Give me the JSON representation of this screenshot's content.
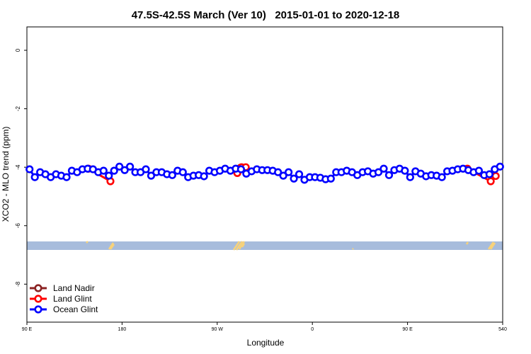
{
  "chart_data": {
    "type": "line",
    "title": "47.5S-42.5S March (Ver 10)   2015-01-01 to 2020-12-18",
    "x_label": "Longitude",
    "y_label": "XCO2 - MLO trend (ppm)",
    "xlim": [
      90,
      540
    ],
    "ylim": [
      -9.3,
      0.8
    ],
    "xticks": [
      {
        "value": 90,
        "label": "90 E"
      },
      180,
      {
        "value": 270,
        "label": "90 W"
      },
      {
        "value": 360,
        "label": "0"
      },
      {
        "value": 450,
        "label": "90 E"
      },
      540
    ],
    "yticks": [
      0,
      -2,
      -4,
      -6,
      -8
    ],
    "legend": "bottom-left",
    "series": [
      {
        "name": "Land Nadir",
        "color": "#8b2323",
        "x": [
          292
        ],
        "values": [
          -4.02
        ]
      },
      {
        "name": "Land Glint",
        "color": "#ff0000",
        "x": [
          148.3,
          169,
          null,
          289,
          293,
          297,
          null,
          506.6,
          528.7,
          533.4
        ],
        "values": [
          -4.05,
          -4.48,
          null,
          -4.2,
          -4.0,
          -4.0,
          null,
          -4.05,
          -4.48,
          -4.3
        ]
      },
      {
        "name": "Ocean Glint",
        "color": "#0000ff",
        "x": [
          92.5,
          97.5,
          102.5,
          107.5,
          112.5,
          117.5,
          122.5,
          127.5,
          132.5,
          137.5,
          142.5,
          147.5,
          152.5,
          157.5,
          162.5,
          167.5,
          172.5,
          177.5,
          182.5,
          187.5,
          192.5,
          197.5,
          202.5,
          207.5,
          212.5,
          217.5,
          222.5,
          227.5,
          232.5,
          237.5,
          242.5,
          247.5,
          252.5,
          257.5,
          262.5,
          267.5,
          272.5,
          277.5,
          282.5,
          287.5,
          292.5,
          297.5,
          302.5,
          307.5,
          312.5,
          317.5,
          322.5,
          327.5,
          332.5,
          337.5,
          342.5,
          347.5,
          352.5,
          357.5,
          362.5,
          367.5,
          372.5,
          377.5,
          382.5,
          387.5,
          392.5,
          397.5,
          402.5,
          407.5,
          412.5,
          417.5,
          422.5,
          427.5,
          432.5,
          437.5,
          442.5,
          447.5,
          452.5,
          457.5,
          462.5,
          467.5,
          472.5,
          477.5,
          482.5,
          487.5,
          492.5,
          497.5,
          502.5,
          507.5,
          512.5,
          517.5,
          522.5,
          527.5,
          532.5,
          537.5
        ],
        "values": [
          -4.07,
          -4.34,
          -4.17,
          -4.24,
          -4.34,
          -4.24,
          -4.29,
          -4.34,
          -4.12,
          -4.17,
          -4.07,
          -4.05,
          -4.07,
          -4.17,
          -4.12,
          -4.29,
          -4.12,
          -3.98,
          -4.1,
          -3.98,
          -4.17,
          -4.17,
          -4.07,
          -4.29,
          -4.17,
          -4.17,
          -4.24,
          -4.27,
          -4.12,
          -4.17,
          -4.34,
          -4.29,
          -4.27,
          -4.31,
          -4.12,
          -4.17,
          -4.12,
          -4.05,
          -4.12,
          -4.05,
          -4.07,
          -4.22,
          -4.14,
          -4.07,
          -4.1,
          -4.1,
          -4.12,
          -4.17,
          -4.29,
          -4.17,
          -4.39,
          -4.24,
          -4.43,
          -4.34,
          -4.34,
          -4.36,
          -4.41,
          -4.39,
          -4.17,
          -4.17,
          -4.12,
          -4.17,
          -4.27,
          -4.17,
          -4.14,
          -4.22,
          -4.17,
          -4.05,
          -4.27,
          -4.1,
          -4.05,
          -4.12,
          -4.34,
          -4.14,
          -4.22,
          -4.31,
          -4.27,
          -4.29,
          -4.34,
          -4.14,
          -4.12,
          -4.07,
          -4.05,
          -4.1,
          -4.17,
          -4.12,
          -4.27,
          -4.24,
          -4.07,
          -3.98
        ]
      }
    ]
  }
}
